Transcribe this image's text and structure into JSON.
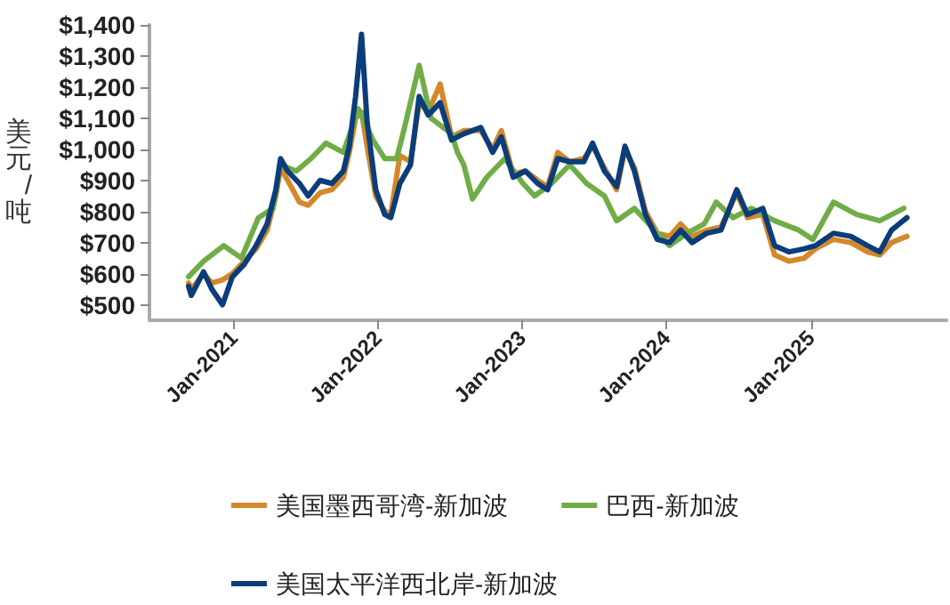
{
  "chart_data": {
    "type": "line",
    "ylabel": "美元/吨",
    "xlim": [
      "2020-06-01",
      "2025-12-10"
    ],
    "ylim": [
      450,
      1400
    ],
    "xticks": [
      {
        "value": "2021-01-01",
        "label": "Jan-2021"
      },
      {
        "value": "2022-01-01",
        "label": "Jan-2022"
      },
      {
        "value": "2023-01-01",
        "label": "Jan-2023"
      },
      {
        "value": "2024-01-01",
        "label": "Jan-2024"
      },
      {
        "value": "2025-01-01",
        "label": "Jan-2025"
      }
    ],
    "yticks": [
      {
        "value": 500,
        "label": "$500"
      },
      {
        "value": 600,
        "label": "$600"
      },
      {
        "value": 700,
        "label": "$700"
      },
      {
        "value": 800,
        "label": "$800"
      },
      {
        "value": 900,
        "label": "$900"
      },
      {
        "value": 1000,
        "label": "$1,000"
      },
      {
        "value": 1100,
        "label": "$1,100"
      },
      {
        "value": 1200,
        "label": "$1,200"
      },
      {
        "value": 1300,
        "label": "$1,300"
      },
      {
        "value": 1400,
        "label": "$1,400"
      }
    ],
    "grid": false,
    "legend": "bottom",
    "marker": "none",
    "line_style": "solid",
    "series": [
      {
        "name": "美国墨西哥湾-新加波",
        "color": "#d4882a",
        "x": [
          "2020-09-08",
          "2020-09-15",
          "2020-10-16",
          "2020-11-06",
          "2020-12-03",
          "2020-12-28",
          "2021-01-27",
          "2021-02-26",
          "2021-03-26",
          "2021-04-17",
          "2021-04-29",
          "2021-05-17",
          "2021-06-16",
          "2021-07-08",
          "2021-08-07",
          "2021-09-06",
          "2021-10-05",
          "2021-10-20",
          "2021-11-05",
          "2021-11-20",
          "2021-12-04",
          "2021-12-26",
          "2022-01-18",
          "2022-02-02",
          "2022-02-25",
          "2022-03-24",
          "2022-04-15",
          "2022-05-08",
          "2022-06-07",
          "2022-07-06",
          "2022-08-06",
          "2022-09-18",
          "2022-10-18",
          "2022-11-09",
          "2022-12-09",
          "2023-01-09",
          "2023-02-09",
          "2023-03-06",
          "2023-04-01",
          "2023-05-01",
          "2023-06-06",
          "2023-06-28",
          "2023-07-28",
          "2023-08-28",
          "2023-09-18",
          "2023-10-12",
          "2023-11-09",
          "2023-12-09",
          "2024-01-09",
          "2024-02-06",
          "2024-03-06",
          "2024-04-12",
          "2024-05-18",
          "2024-06-27",
          "2024-07-24",
          "2024-09-01",
          "2024-10-01",
          "2024-11-06",
          "2024-12-15",
          "2025-01-12",
          "2025-02-27",
          "2025-04-12",
          "2025-05-24",
          "2025-06-24",
          "2025-07-24",
          "2025-09-01"
        ],
        "values": [
          570,
          550,
          600,
          570,
          580,
          600,
          640,
          680,
          740,
          850,
          940,
          900,
          830,
          820,
          860,
          870,
          910,
          990,
          1100,
          1120,
          1010,
          850,
          800,
          790,
          980,
          960,
          1150,
          1120,
          1210,
          1040,
          1060,
          1060,
          1000,
          1060,
          920,
          930,
          900,
          880,
          990,
          960,
          970,
          1010,
          940,
          870,
          1000,
          940,
          800,
          730,
          720,
          760,
          720,
          740,
          750,
          860,
          780,
          790,
          660,
          640,
          650,
          680,
          710,
          700,
          670,
          660,
          700,
          720
        ]
      },
      {
        "name": "巴西-新加波",
        "color": "#70ad47",
        "x": [
          "2020-09-08",
          "2020-10-16",
          "2020-12-06",
          "2021-01-20",
          "2021-03-04",
          "2021-04-10",
          "2021-04-29",
          "2021-06-08",
          "2021-07-15",
          "2021-08-22",
          "2021-10-05",
          "2021-11-12",
          "2021-12-19",
          "2022-01-18",
          "2022-02-17",
          "2022-03-09",
          "2022-04-15",
          "2022-05-15",
          "2022-07-06",
          "2022-07-21",
          "2022-08-06",
          "2022-08-28",
          "2022-10-03",
          "2022-11-18",
          "2023-01-03",
          "2023-02-01",
          "2023-03-16",
          "2023-05-01",
          "2023-06-13",
          "2023-07-28",
          "2023-08-28",
          "2023-10-12",
          "2023-11-25",
          "2024-01-09",
          "2024-02-22",
          "2024-04-06",
          "2024-05-06",
          "2024-06-18",
          "2024-08-03",
          "2024-10-01",
          "2024-12-01",
          "2025-01-06",
          "2025-02-27",
          "2025-04-27",
          "2025-06-24",
          "2025-08-24"
        ],
        "values": [
          590,
          640,
          690,
          650,
          780,
          810,
          950,
          930,
          970,
          1020,
          990,
          1130,
          1030,
          970,
          970,
          1070,
          1270,
          1100,
          1050,
          990,
          950,
          840,
          910,
          970,
          890,
          850,
          890,
          950,
          890,
          850,
          770,
          810,
          750,
          690,
          730,
          760,
          830,
          780,
          810,
          770,
          740,
          710,
          830,
          790,
          770,
          810
        ]
      },
      {
        "name": "美国太平洋西北岸-新加波",
        "color": "#0b3d7a",
        "x": [
          "2020-09-08",
          "2020-09-15",
          "2020-10-16",
          "2020-11-06",
          "2020-12-03",
          "2020-12-28",
          "2021-01-27",
          "2021-02-26",
          "2021-03-26",
          "2021-04-17",
          "2021-04-29",
          "2021-05-17",
          "2021-06-16",
          "2021-07-08",
          "2021-08-07",
          "2021-09-06",
          "2021-10-05",
          "2021-10-20",
          "2021-11-05",
          "2021-11-20",
          "2021-12-04",
          "2021-12-26",
          "2022-01-18",
          "2022-02-02",
          "2022-02-25",
          "2022-03-24",
          "2022-04-15",
          "2022-05-08",
          "2022-06-07",
          "2022-07-06",
          "2022-08-06",
          "2022-09-18",
          "2022-10-18",
          "2022-11-09",
          "2022-12-09",
          "2023-01-09",
          "2023-02-09",
          "2023-03-06",
          "2023-04-01",
          "2023-05-01",
          "2023-06-06",
          "2023-06-28",
          "2023-07-28",
          "2023-08-28",
          "2023-09-18",
          "2023-10-12",
          "2023-11-09",
          "2023-12-09",
          "2024-01-09",
          "2024-02-06",
          "2024-03-06",
          "2024-04-12",
          "2024-05-18",
          "2024-06-27",
          "2024-07-24",
          "2024-09-01",
          "2024-10-01",
          "2024-11-06",
          "2024-12-15",
          "2025-01-12",
          "2025-02-27",
          "2025-04-12",
          "2025-05-24",
          "2025-06-24",
          "2025-07-24",
          "2025-09-01"
        ],
        "values": [
          560,
          530,
          606,
          550,
          500,
          590,
          630,
          690,
          760,
          870,
          970,
          930,
          890,
          850,
          900,
          890,
          930,
          1010,
          1170,
          1370,
          1090,
          870,
          790,
          780,
          890,
          950,
          1170,
          1110,
          1150,
          1030,
          1050,
          1070,
          990,
          1040,
          910,
          930,
          890,
          870,
          970,
          960,
          960,
          1020,
          930,
          880,
          1010,
          930,
          790,
          710,
          700,
          740,
          700,
          730,
          740,
          870,
          790,
          810,
          690,
          670,
          680,
          690,
          730,
          720,
          690,
          670,
          740,
          780
        ]
      }
    ]
  }
}
